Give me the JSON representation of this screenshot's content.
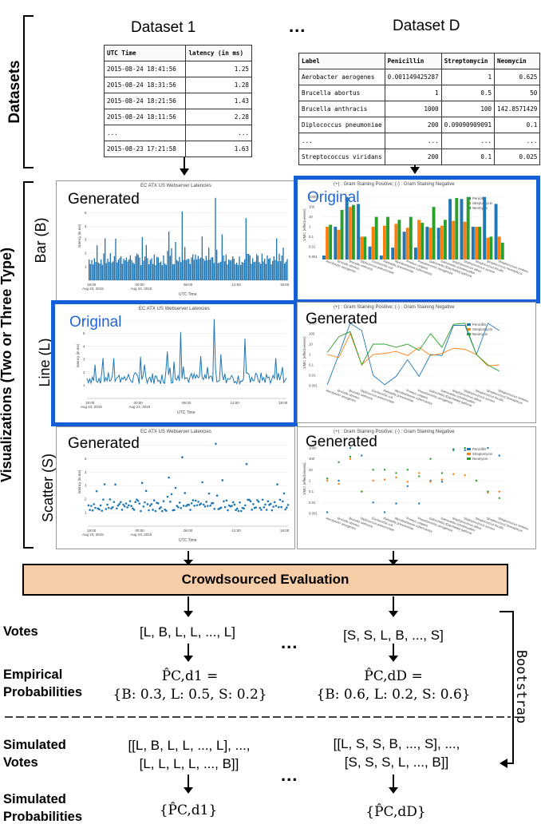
{
  "datasets_label": "Datasets",
  "visualizations_label": "Visualizations (Two or Three Type)",
  "row_labels": {
    "bar": "Bar (B)",
    "line": "Line (L)",
    "scatter": "Scatter (S)"
  },
  "dataset1": {
    "title": "Dataset 1",
    "headers": [
      "UTC Time",
      "latency (in ms)"
    ],
    "rows": [
      [
        "2015-08-24 18:41:56",
        "1.25"
      ],
      [
        "2015-08-24 18:31:56",
        "1.28"
      ],
      [
        "2015-08-24 18:21:56",
        "1.43"
      ],
      [
        "2015-08-24 18:11:56",
        "2.28"
      ],
      [
        "...",
        "..."
      ],
      [
        "2015-08-23 17:21:58",
        "1.63"
      ]
    ]
  },
  "ellipsis": "...",
  "datasetD": {
    "title": "Dataset D",
    "headers": [
      "Label",
      "Penicillin",
      "Streptomycin",
      "Neomycin"
    ],
    "rows": [
      [
        "Aerobacter aerogenes",
        "0.001149425287",
        "1",
        "0.625"
      ],
      [
        "Brucella abortus",
        "1",
        "0.5",
        "50"
      ],
      [
        "Brucella anthracis",
        "1000",
        "100",
        "142.8571429"
      ],
      [
        "Diplococcus pneumoniae",
        "200",
        "0.09090909091",
        "0.1"
      ],
      [
        "...",
        "...",
        "...",
        "..."
      ],
      [
        "Streptococcus viridans",
        "200",
        "0.1",
        "0.025"
      ]
    ]
  },
  "panels": {
    "generated": "Generated",
    "original": "Original",
    "left_chart_title": "EC ATX US Webserver Latencies",
    "left_ylabel": "latency (in ms)",
    "left_xlabel": "UTC Time",
    "left_xticks": [
      "18:00\nAug 23, 2015",
      "00:00\nAug 24, 2015",
      "06:00",
      "12:00",
      "18:00"
    ],
    "right_chart_title": "(+) : Gram Staining Positive;  (-) : Gram Staining Negative",
    "right_ylabel": "1/MIC (effectiveness)",
    "legend": [
      "Penicillin",
      "Streptomycin",
      "Neomycin"
    ]
  },
  "colors": {
    "blue": "#1f77b4",
    "orange": "#ff7f0e",
    "green": "#2ca02c",
    "highlight": "#1560d6",
    "crowd": "#f7cda8"
  },
  "crowd_label": "Crowdsourced Evaluation",
  "votes": {
    "label": "Votes",
    "left": "[L, B, L, L, ..., L]",
    "right": "[S, S, L, B, ..., S]"
  },
  "empirical": {
    "label_line1": "Empirical",
    "label_line2": "Probabilities",
    "left_line1": "P̂C,d1 =",
    "left_line2": "{B: 0.3, L: 0.5, S: 0.2}",
    "right_line1": "P̂C,dD =",
    "right_line2": "{B: 0.6, L: 0.2, S: 0.6}"
  },
  "bootstrap": "Bootstrap",
  "simulated_votes": {
    "label_line1": "Simulated",
    "label_line2": "Votes",
    "left_line1": "[[L, B, L, L, ..., L], ...,",
    "left_line2": "[L, L, L, L, ..., B]]",
    "right_line1": "[[L, S, S, B, ..., S], ...,",
    "right_line2": "[S, S, S, L, ..., B]]"
  },
  "simulated_probs": {
    "label_line1": "Simulated",
    "label_line2": "Probabilities",
    "left": "{P̂C,d1}",
    "right": "{P̂C,dD}"
  }
}
